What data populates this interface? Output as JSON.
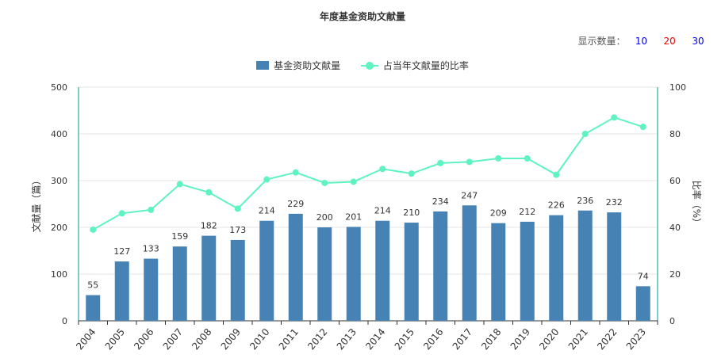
{
  "title": "年度基金资助文献量",
  "count_selector": {
    "label": "显示数量：",
    "options": [
      {
        "label": "10",
        "color": "#0000ee"
      },
      {
        "label": "20",
        "color": "#ee0000"
      },
      {
        "label": "30",
        "color": "#0000ee"
      }
    ]
  },
  "colors": {
    "bar": "#4682b4",
    "line": "#5ff3c0",
    "axis": "#009a8e",
    "grid": "#e6e6e6"
  },
  "chart_data": {
    "type": "bar",
    "title": "年度基金资助文献量",
    "categories": [
      "2004",
      "2005",
      "2006",
      "2007",
      "2008",
      "2009",
      "2010",
      "2011",
      "2012",
      "2013",
      "2014",
      "2015",
      "2016",
      "2017",
      "2018",
      "2019",
      "2020",
      "2021",
      "2022",
      "2023"
    ],
    "series": [
      {
        "name": "基金资助文献量",
        "type": "bar",
        "axis": "left",
        "values": [
          55,
          127,
          133,
          159,
          182,
          173,
          214,
          229,
          200,
          201,
          214,
          210,
          234,
          247,
          209,
          212,
          226,
          236,
          232,
          74
        ]
      },
      {
        "name": "占当年文献量的比率",
        "type": "line",
        "axis": "right",
        "values": [
          39,
          46,
          47.5,
          58.5,
          55,
          48,
          60.5,
          63.5,
          59,
          59.5,
          65,
          63,
          67.5,
          68,
          69.5,
          69.5,
          62.5,
          80,
          87,
          83
        ]
      }
    ],
    "ylabel": "文献量（篇）",
    "y2label": "比率（%）",
    "ylim": [
      0,
      500
    ],
    "y2lim": [
      0,
      100
    ],
    "yticks": [
      0,
      100,
      200,
      300,
      400,
      500
    ],
    "y2ticks": [
      0,
      20,
      40,
      60,
      80,
      100
    ],
    "grid": true,
    "legend_position": "top-center"
  }
}
